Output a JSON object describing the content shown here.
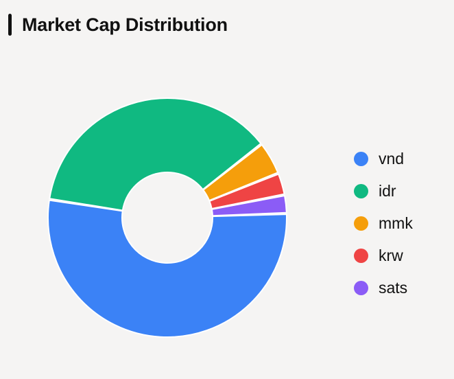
{
  "title": "Market Cap Distribution",
  "chart_data": {
    "type": "pie",
    "donut": true,
    "legend_position": "right",
    "slices": [
      {
        "label": "vnd",
        "value": 53.0,
        "color": "#3b82f6"
      },
      {
        "label": "idr",
        "value": 37.0,
        "color": "#10b981"
      },
      {
        "label": "mmk",
        "value": 4.5,
        "color": "#f59e0b"
      },
      {
        "label": "krw",
        "value": 3.0,
        "color": "#ef4444"
      },
      {
        "label": "sats",
        "value": 2.5,
        "color": "#8b5cf6"
      }
    ]
  }
}
